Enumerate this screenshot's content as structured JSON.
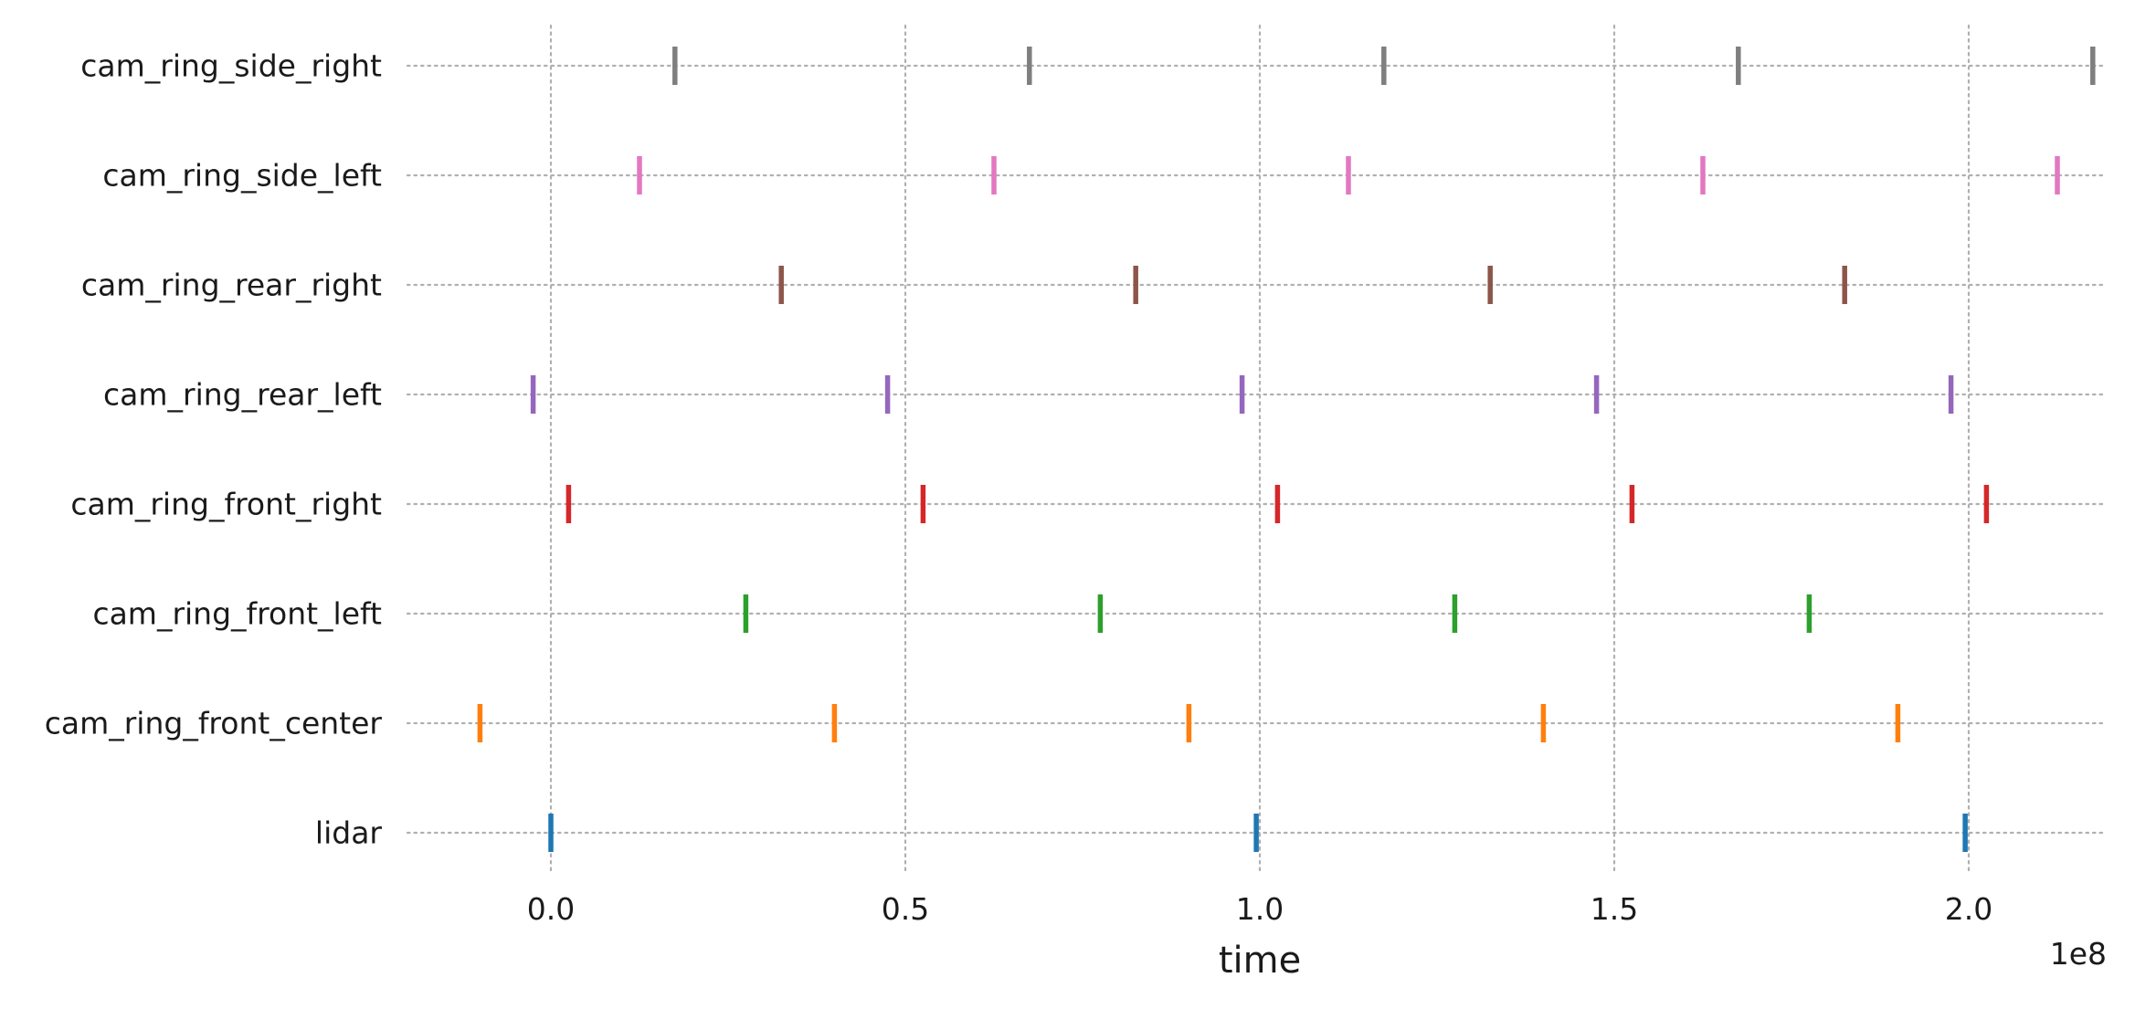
{
  "chart_data": {
    "type": "scatter",
    "marker": "vertical-tick",
    "title": "",
    "xlabel": "time",
    "ylabel": "",
    "x_offset_label": "1e8",
    "xlim": [
      -0.2,
      2.2
    ],
    "x_scale_note": "x values are shown in units of 1e8 (axis offset text '1e8')",
    "x_ticks": [
      0.0,
      0.5,
      1.0,
      1.5,
      2.0
    ],
    "x_tick_labels": [
      "0.0",
      "0.5",
      "1.0",
      "1.5",
      "2.0"
    ],
    "y_categories_bottom_to_top": [
      "lidar",
      "cam_ring_front_center",
      "cam_ring_front_left",
      "cam_ring_front_right",
      "cam_ring_rear_left",
      "cam_ring_rear_right",
      "cam_ring_side_left",
      "cam_ring_side_right"
    ],
    "grid": true,
    "grid_style": "dotted",
    "legend": "none",
    "series": [
      {
        "category": "lidar",
        "color": "#1f77b4",
        "x": [
          0.0,
          0.995,
          1.995
        ]
      },
      {
        "category": "cam_ring_front_center",
        "color": "#ff7f0e",
        "x": [
          -0.1,
          0.4,
          0.9,
          1.4,
          1.9
        ]
      },
      {
        "category": "cam_ring_front_left",
        "color": "#2ca02c",
        "x": [
          0.275,
          0.775,
          1.275,
          1.775
        ]
      },
      {
        "category": "cam_ring_front_right",
        "color": "#d62728",
        "x": [
          0.025,
          0.525,
          1.025,
          1.525,
          2.025
        ]
      },
      {
        "category": "cam_ring_rear_left",
        "color": "#9467bd",
        "x": [
          -0.025,
          0.475,
          0.975,
          1.475,
          1.975
        ]
      },
      {
        "category": "cam_ring_rear_right",
        "color": "#8c564b",
        "x": [
          0.325,
          0.825,
          1.325,
          1.825
        ]
      },
      {
        "category": "cam_ring_side_left",
        "color": "#e377c2",
        "x": [
          0.125,
          0.625,
          1.125,
          1.625,
          2.125
        ]
      },
      {
        "category": "cam_ring_side_right",
        "color": "#7f7f7f",
        "x": [
          0.175,
          0.675,
          1.175,
          1.675,
          2.175
        ]
      }
    ]
  }
}
